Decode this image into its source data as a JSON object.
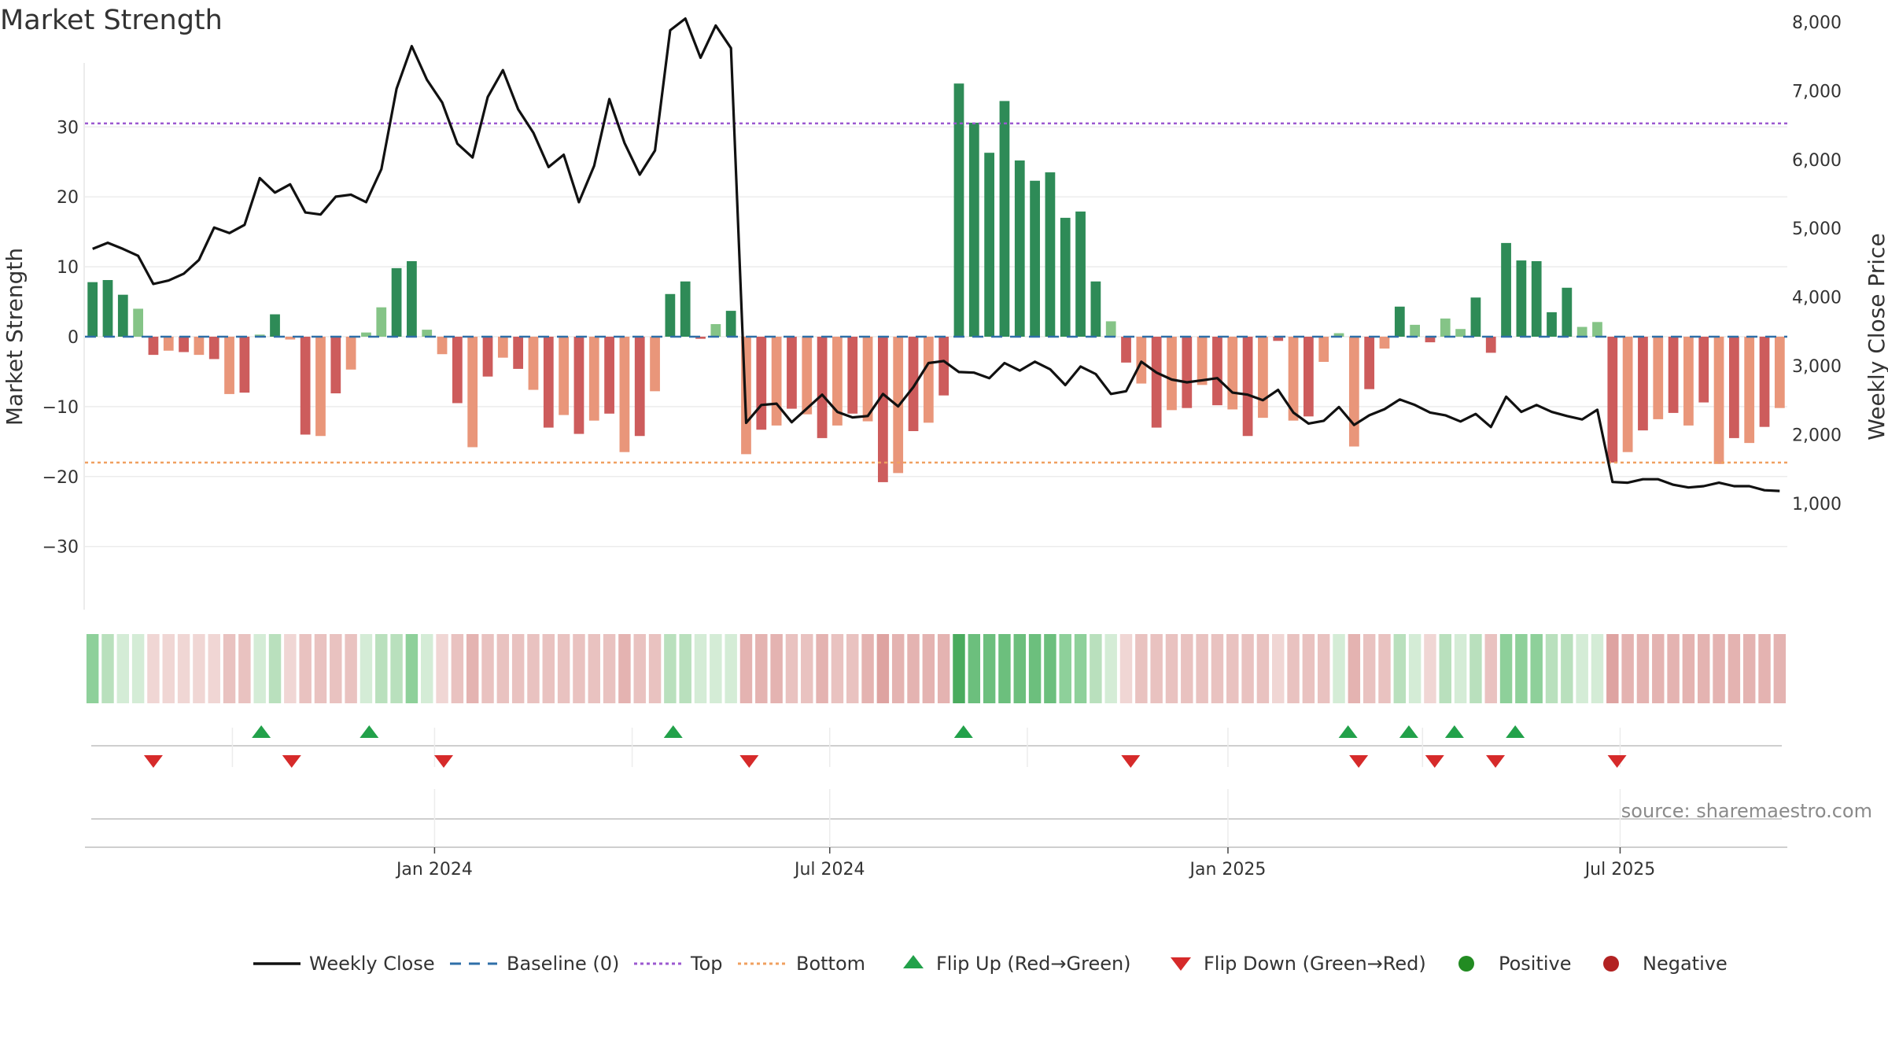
{
  "title": "Market Strength",
  "source": "source: sharemaestro.com",
  "chart_data": {
    "type": "bar",
    "y_left_label": "Market Strength",
    "y_right_label": "Weekly Close Price",
    "y_left_ticks": [
      30,
      20,
      10,
      0,
      -10,
      -20,
      -30
    ],
    "y_left_tick_labels": [
      "30",
      "20",
      "10",
      "0",
      "−10",
      "−20",
      "−30"
    ],
    "y_right_ticks": [
      8000,
      7000,
      6000,
      5000,
      4000,
      3000,
      2000,
      1000
    ],
    "y_right_tick_labels": [
      "8,000",
      "7,000",
      "6,000",
      "5,000",
      "4,000",
      "3,000",
      "2,000",
      "1,000"
    ],
    "ylim_left": [
      -39,
      39
    ],
    "ylim_right": [
      300,
      8550
    ],
    "top_line": 30.5,
    "bottom_line": -18,
    "x_tick_labels": [
      "Jan 2024",
      "Jul 2024",
      "Jan 2025",
      "Jul 2025"
    ],
    "x_tick_index": [
      22.5,
      48.5,
      74.7,
      100.5
    ],
    "x_minor_index": [
      9.2,
      35.5,
      61.5,
      87.5
    ],
    "strength": [
      7.8,
      8.1,
      6.0,
      4.0,
      -2.6,
      -2.0,
      -2.2,
      -2.6,
      -3.2,
      -8.2,
      -8.0,
      0.3,
      3.2,
      -0.4,
      -14.0,
      -14.2,
      -8.1,
      -4.7,
      0.6,
      4.2,
      9.8,
      10.8,
      1.0,
      -2.5,
      -9.5,
      -15.8,
      -5.7,
      -3.0,
      -4.6,
      -7.6,
      -13.0,
      -11.2,
      -13.9,
      -12.0,
      -11.0,
      -16.5,
      -14.2,
      -7.8,
      6.1,
      7.9,
      -0.3,
      1.8,
      3.7,
      -16.8,
      -13.3,
      -12.7,
      -10.3,
      -11.1,
      -14.5,
      -12.7,
      -11.0,
      -12.1,
      -20.8,
      -19.5,
      -13.5,
      -12.3,
      -8.4,
      36.2,
      30.6,
      26.3,
      33.7,
      25.2,
      22.3,
      23.5,
      17.0,
      17.9,
      7.9,
      2.2,
      -3.7,
      -6.7,
      -13.0,
      -10.5,
      -10.2,
      -6.9,
      -9.8,
      -10.4,
      -14.2,
      -11.6,
      -0.6,
      -12.0,
      -11.4,
      -3.6,
      0.5,
      -15.7,
      -7.5,
      -1.7,
      4.3,
      1.7,
      -0.8,
      2.6,
      1.1,
      5.6,
      -2.3,
      13.4,
      10.9,
      10.8,
      3.5,
      7.0,
      1.4,
      2.1,
      -18.0,
      -16.5,
      -13.4,
      -11.8,
      -10.9,
      -12.7,
      -9.4,
      -18.2,
      -14.5,
      -15.2,
      -12.9,
      -10.2
    ],
    "weekly_close": [
      4700,
      4790,
      4700,
      4600,
      4190,
      4240,
      4340,
      4540,
      5010,
      4930,
      5050,
      5730,
      5520,
      5640,
      5230,
      5200,
      5460,
      5490,
      5380,
      5860,
      7030,
      7650,
      7160,
      6830,
      6230,
      6030,
      6910,
      7300,
      6730,
      6390,
      5890,
      6070,
      5380,
      5910,
      6880,
      6240,
      5780,
      6130,
      7880,
      8050,
      7480,
      7950,
      7620,
      2170,
      2430,
      2450,
      2180,
      2380,
      2580,
      2330,
      2250,
      2270,
      2590,
      2410,
      2690,
      3040,
      3070,
      2910,
      2900,
      2820,
      3040,
      2930,
      3060,
      2950,
      2720,
      2990,
      2880,
      2590,
      2630,
      3060,
      2900,
      2800,
      2760,
      2790,
      2820,
      2610,
      2580,
      2500,
      2650,
      2320,
      2160,
      2200,
      2400,
      2140,
      2280,
      2370,
      2510,
      2430,
      2320,
      2280,
      2190,
      2300,
      2110,
      2550,
      2330,
      2430,
      2330,
      2270,
      2220,
      2360,
      1310,
      1300,
      1350,
      1350,
      1270,
      1230,
      1250,
      1300,
      1250,
      1250,
      1190,
      1180
    ],
    "heat_strip": [
      3,
      2,
      1,
      1,
      -1,
      -1,
      -1,
      -1,
      -1,
      -2,
      -2,
      1,
      2,
      -1,
      -2,
      -2,
      -2,
      -2,
      1,
      2,
      2,
      3,
      1,
      -1,
      -2,
      -3,
      -2,
      -2,
      -2,
      -2,
      -2,
      -2,
      -2,
      -2,
      -2,
      -3,
      -2,
      -2,
      2,
      2,
      1,
      1,
      1,
      -3,
      -3,
      -3,
      -2,
      -2,
      -3,
      -2,
      -2,
      -3,
      -4,
      -3,
      -3,
      -3,
      -3,
      5,
      4,
      4,
      4,
      4,
      4,
      4,
      3,
      3,
      2,
      1,
      -1,
      -2,
      -2,
      -2,
      -2,
      -2,
      -2,
      -2,
      -2,
      -2,
      -1,
      -2,
      -2,
      -2,
      1,
      -3,
      -2,
      -2,
      2,
      1,
      -1,
      2,
      1,
      2,
      -2,
      3,
      3,
      3,
      2,
      2,
      1,
      1,
      -4,
      -3,
      -3,
      -3,
      -3,
      -3,
      -3,
      -3,
      -3,
      -3,
      -3,
      -3
    ],
    "flip_up_index": [
      11.1,
      18.2,
      38.2,
      57.3,
      82.6,
      86.6,
      89.6,
      93.6
    ],
    "flip_down_index": [
      4.0,
      13.1,
      23.1,
      43.2,
      68.3,
      83.3,
      88.3,
      92.3,
      100.3
    ],
    "legend": [
      "Weekly Close",
      "Baseline (0)",
      "Top",
      "Bottom",
      "Flip Up (Red→Green)",
      "Flip Down (Green→Red)",
      "Positive",
      "Negative"
    ],
    "colors": {
      "pos_strong": "#2e8b57",
      "pos_weak": "#85c487",
      "neg_strong": "#cd5c5c",
      "neg_weak": "#e9967a",
      "line": "#111111",
      "baseline": "#2f6fa8",
      "top": "#9b59d0",
      "bottom": "#f0a060",
      "flip_up": "#22a14a",
      "flip_down": "#d62a2a",
      "positive": "#228b22",
      "negative": "#b22222"
    },
    "grid": true
  }
}
